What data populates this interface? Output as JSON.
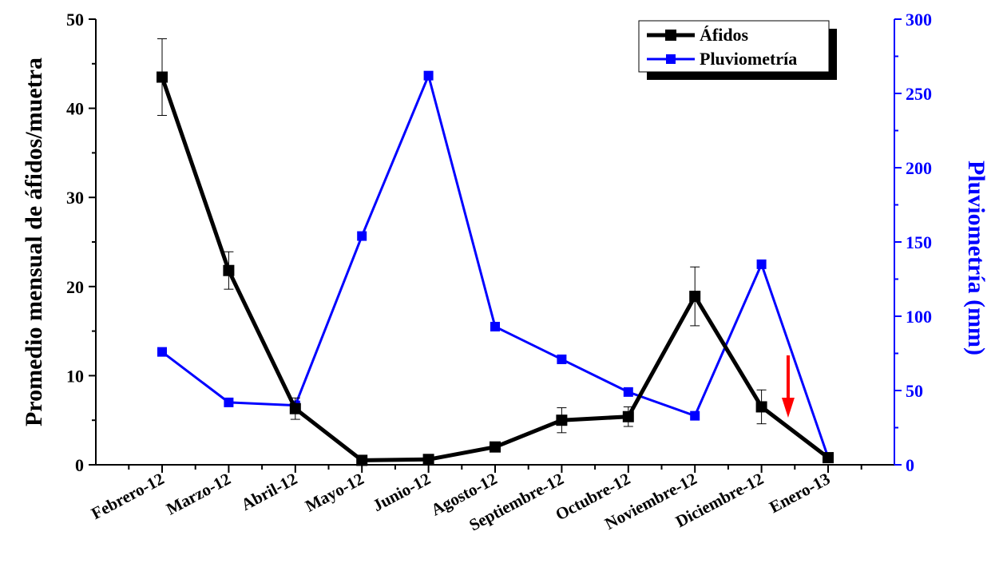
{
  "chart_data": {
    "type": "line",
    "categories": [
      "Febrero-12",
      "Marzo-12",
      "Abril-12",
      "Mayo-12",
      "Junio-12",
      "Agosto-12",
      "Septiembre-12",
      "Octubre-12",
      "Noviembre-12",
      "Diciembre-12",
      "Enero-13"
    ],
    "ylabel_left": "Promedio mensual de áfidos/muetra",
    "ylabel_right": "Pluviometría (mm)",
    "ylim_left": [
      0,
      50
    ],
    "ylim_right": [
      0,
      300
    ],
    "yticks_left": [
      "0",
      "10",
      "20",
      "30",
      "40",
      "50"
    ],
    "yticks_right": [
      "0",
      "50",
      "100",
      "150",
      "200",
      "250",
      "300"
    ],
    "grid": false,
    "legend_position": "top-right",
    "series": [
      {
        "name": "Áfidos",
        "axis": "left",
        "color": "#000000",
        "values": [
          43.5,
          21.8,
          6.3,
          0.5,
          0.6,
          2.0,
          5.0,
          5.4,
          18.9,
          6.5,
          0.8
        ],
        "error": [
          4.3,
          2.1,
          1.2,
          0.3,
          0.3,
          0.5,
          1.4,
          1.1,
          3.3,
          1.9,
          0.3
        ]
      },
      {
        "name": "Pluviometría",
        "axis": "right",
        "color": "#0000ff",
        "values": [
          76,
          42,
          40,
          154,
          262,
          93,
          71,
          49,
          33,
          135,
          5
        ]
      }
    ],
    "annotation": {
      "type": "arrow",
      "color": "#ff0000",
      "direction": "down",
      "between_categories": [
        "Diciembre-12",
        "Enero-13"
      ]
    }
  }
}
